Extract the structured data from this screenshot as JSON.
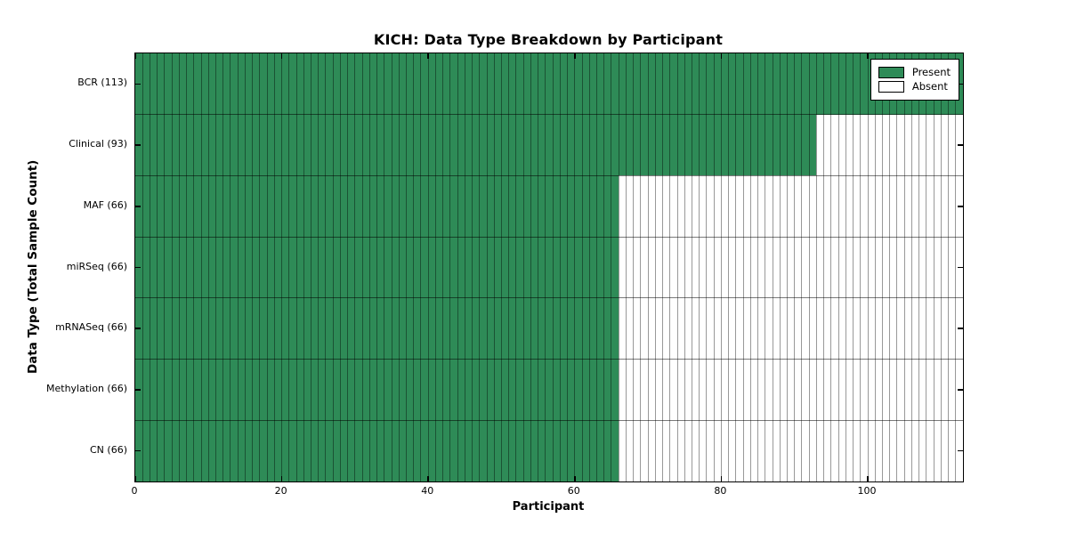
{
  "chart_data": {
    "type": "heatmap",
    "title": "KICH: Data Type Breakdown by Participant",
    "xlabel": "Participant",
    "ylabel": "Data Type (Total Sample Count)",
    "n_participants": 113,
    "xlim": [
      0,
      113
    ],
    "x_ticks": [
      0,
      20,
      40,
      60,
      80,
      100
    ],
    "grid": true,
    "legend_position": "upper right",
    "rows": [
      {
        "label": "BCR (113)",
        "data_type": "BCR",
        "total_sample_count": 113,
        "present": 113,
        "absent": 0
      },
      {
        "label": "Clinical (93)",
        "data_type": "Clinical",
        "total_sample_count": 93,
        "present": 93,
        "absent": 20
      },
      {
        "label": "MAF (66)",
        "data_type": "MAF",
        "total_sample_count": 66,
        "present": 66,
        "absent": 47
      },
      {
        "label": "miRSeq (66)",
        "data_type": "miRSeq",
        "total_sample_count": 66,
        "present": 66,
        "absent": 47
      },
      {
        "label": "mRNASeq (66)",
        "data_type": "mRNASeq",
        "total_sample_count": 66,
        "present": 66,
        "absent": 47
      },
      {
        "label": "Methylation (66)",
        "data_type": "Methylation",
        "total_sample_count": 66,
        "present": 66,
        "absent": 47
      },
      {
        "label": "CN (66)",
        "data_type": "CN",
        "total_sample_count": 66,
        "present": 66,
        "absent": 47
      }
    ],
    "legend": [
      {
        "label": "Present",
        "color": "#2E8B57"
      },
      {
        "label": "Absent",
        "color": "#FFFFFF"
      }
    ],
    "colors": {
      "present": "#2E8B57",
      "absent": "#FFFFFF",
      "gridline": "rgba(0,0,0,0.40)",
      "row_divider": "rgba(0,0,0,0.52)",
      "axis": "#000000"
    }
  }
}
